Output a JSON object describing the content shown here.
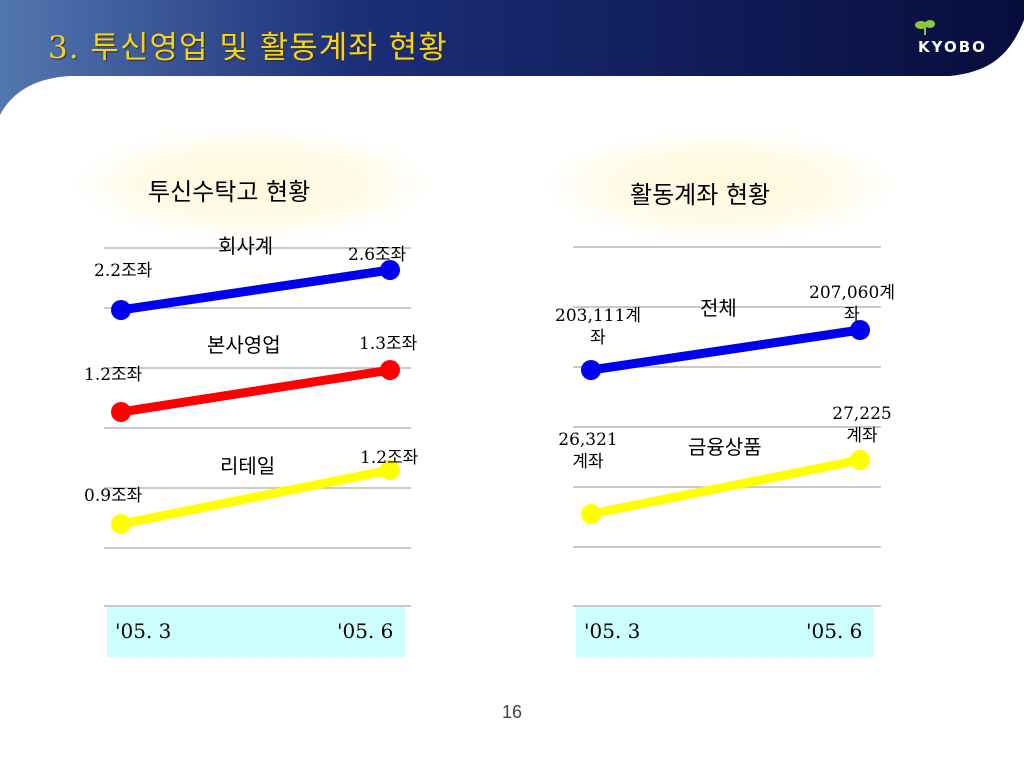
{
  "header": {
    "title": "3. 투신영업 및 활동계좌 현황",
    "logo_text": "KYOBO"
  },
  "colors": {
    "header_dark": "#0b1450",
    "header_light": "#4a6ea9",
    "title": "#f5d21c",
    "axis_box": "#ccffff",
    "blue": "#0000ee",
    "red": "#ff0000",
    "yellow": "#ffff00"
  },
  "left_panel": {
    "title": "투신수탁고 현황",
    "axis_labels": [
      "'05. 3",
      "'05. 6"
    ]
  },
  "right_panel": {
    "title": "활동계좌 현황",
    "axis_labels": [
      "'05. 3",
      "'05. 6"
    ]
  },
  "page_number": "16",
  "chart_data": [
    {
      "type": "line",
      "title": "투신수탁고 현황",
      "categories": [
        "'05. 3",
        "'05. 6"
      ],
      "series": [
        {
          "name": "회사계",
          "values": [
            2.2,
            2.6
          ],
          "labels": [
            "2.2조좌",
            "2.6조좌"
          ],
          "color": "#0000ee"
        },
        {
          "name": "본사영업",
          "values": [
            1.2,
            1.3
          ],
          "labels": [
            "1.2조좌",
            "1.3조좌"
          ],
          "color": "#ff0000"
        },
        {
          "name": "리테일",
          "values": [
            0.9,
            1.2
          ],
          "labels": [
            "0.9조좌",
            "1.2조좌"
          ],
          "color": "#ffff00"
        }
      ],
      "grid": true,
      "legend": "none"
    },
    {
      "type": "line",
      "title": "활동계좌 현황",
      "categories": [
        "'05. 3",
        "'05. 6"
      ],
      "series": [
        {
          "name": "전체",
          "values": [
            203111,
            207060
          ],
          "labels": [
            "203,111계\n좌",
            "207,060계\n좌"
          ],
          "color": "#0000ee"
        },
        {
          "name": "금융상품",
          "values": [
            26321,
            27225
          ],
          "labels": [
            "26,321\n계좌",
            "27,225\n계좌"
          ],
          "color": "#ffff00"
        }
      ],
      "grid": true,
      "legend": "none"
    }
  ]
}
